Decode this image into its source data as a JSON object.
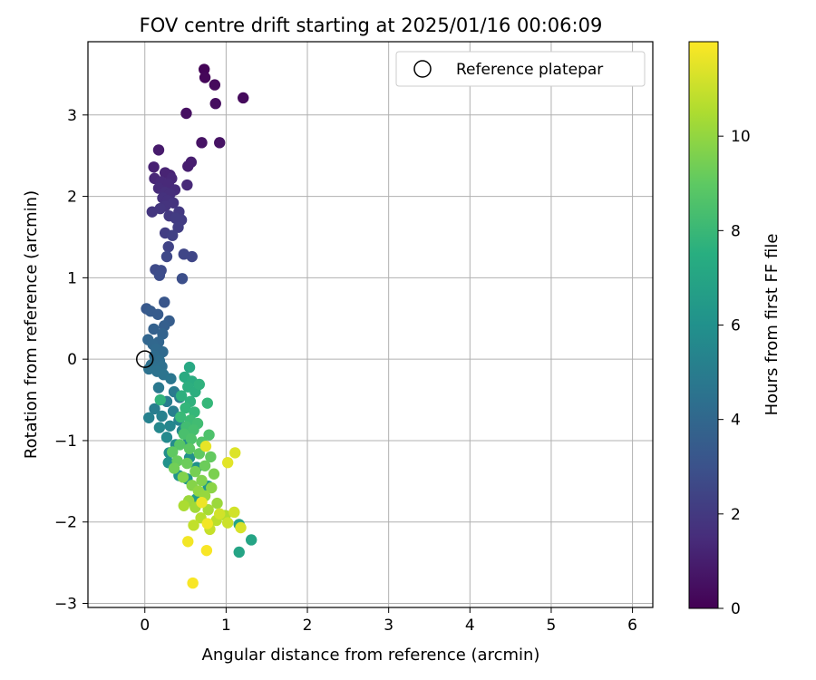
{
  "chart_data": {
    "type": "scatter",
    "title": "FOV centre drift starting at 2025/01/16 00:06:09",
    "xlabel": "Angular distance from reference (arcmin)",
    "ylabel": "Rotation from reference (arcmin)",
    "xlim": [
      -0.7,
      6.25
    ],
    "ylim": [
      -3.05,
      3.9
    ],
    "x_ticks": [
      0,
      1,
      2,
      3,
      4,
      5,
      6
    ],
    "y_ticks": [
      -3,
      -2,
      -1,
      0,
      1,
      2,
      3
    ],
    "grid": true,
    "legend": {
      "placement": "top-right",
      "label": "Reference platepar"
    },
    "reference_point": {
      "x": 0,
      "y": 0
    },
    "colorbar": {
      "label": "Hours from first FF file",
      "colormap": "viridis",
      "range": [
        0,
        12
      ],
      "ticks": [
        0,
        2,
        4,
        6,
        8,
        10
      ],
      "colors": [
        "#440154",
        "#3b528b",
        "#21918c",
        "#5ec962",
        "#fde725"
      ]
    },
    "points": [
      {
        "x": 0.73,
        "y": 3.56,
        "t": 0.1
      },
      {
        "x": 0.74,
        "y": 3.46,
        "t": 0.2
      },
      {
        "x": 0.86,
        "y": 3.37,
        "t": 0.3
      },
      {
        "x": 1.21,
        "y": 3.21,
        "t": 0.3
      },
      {
        "x": 0.87,
        "y": 3.14,
        "t": 0.4
      },
      {
        "x": 0.51,
        "y": 3.02,
        "t": 0.5
      },
      {
        "x": 0.7,
        "y": 2.66,
        "t": 0.6
      },
      {
        "x": 0.92,
        "y": 2.66,
        "t": 0.6
      },
      {
        "x": 0.17,
        "y": 2.57,
        "t": 0.9
      },
      {
        "x": 0.57,
        "y": 2.42,
        "t": 1.0
      },
      {
        "x": 0.53,
        "y": 2.37,
        "t": 1.0
      },
      {
        "x": 0.11,
        "y": 2.36,
        "t": 1.1
      },
      {
        "x": 0.25,
        "y": 2.29,
        "t": 1.2
      },
      {
        "x": 0.31,
        "y": 2.26,
        "t": 1.2
      },
      {
        "x": 0.12,
        "y": 2.22,
        "t": 1.3
      },
      {
        "x": 0.33,
        "y": 2.22,
        "t": 1.3
      },
      {
        "x": 0.2,
        "y": 2.18,
        "t": 1.4
      },
      {
        "x": 0.29,
        "y": 2.15,
        "t": 1.4
      },
      {
        "x": 0.52,
        "y": 2.14,
        "t": 1.4
      },
      {
        "x": 0.17,
        "y": 2.1,
        "t": 1.5
      },
      {
        "x": 0.37,
        "y": 2.08,
        "t": 1.5
      },
      {
        "x": 0.25,
        "y": 2.05,
        "t": 1.6
      },
      {
        "x": 0.31,
        "y": 2.03,
        "t": 1.6
      },
      {
        "x": 0.22,
        "y": 1.98,
        "t": 1.7
      },
      {
        "x": 0.28,
        "y": 1.95,
        "t": 1.7
      },
      {
        "x": 0.35,
        "y": 1.92,
        "t": 1.8
      },
      {
        "x": 0.25,
        "y": 1.88,
        "t": 1.8
      },
      {
        "x": 0.19,
        "y": 1.85,
        "t": 1.9
      },
      {
        "x": 0.09,
        "y": 1.81,
        "t": 1.9
      },
      {
        "x": 0.42,
        "y": 1.81,
        "t": 2.0
      },
      {
        "x": 0.3,
        "y": 1.76,
        "t": 2.0
      },
      {
        "x": 0.38,
        "y": 1.73,
        "t": 2.1
      },
      {
        "x": 0.45,
        "y": 1.71,
        "t": 2.1
      },
      {
        "x": 0.41,
        "y": 1.62,
        "t": 2.2
      },
      {
        "x": 0.25,
        "y": 1.55,
        "t": 2.2
      },
      {
        "x": 0.34,
        "y": 1.52,
        "t": 2.3
      },
      {
        "x": 0.29,
        "y": 1.38,
        "t": 2.4
      },
      {
        "x": 0.48,
        "y": 1.29,
        "t": 2.5
      },
      {
        "x": 0.58,
        "y": 1.26,
        "t": 2.5
      },
      {
        "x": 0.27,
        "y": 1.26,
        "t": 2.6
      },
      {
        "x": 0.13,
        "y": 1.1,
        "t": 2.7
      },
      {
        "x": 0.2,
        "y": 1.09,
        "t": 2.7
      },
      {
        "x": 0.18,
        "y": 1.03,
        "t": 2.8
      },
      {
        "x": 0.46,
        "y": 0.99,
        "t": 2.9
      },
      {
        "x": 0.24,
        "y": 0.7,
        "t": 3.2
      },
      {
        "x": 0.02,
        "y": 0.62,
        "t": 3.3
      },
      {
        "x": 0.07,
        "y": 0.59,
        "t": 3.4
      },
      {
        "x": 0.16,
        "y": 0.55,
        "t": 3.4
      },
      {
        "x": 0.3,
        "y": 0.47,
        "t": 3.5
      },
      {
        "x": 0.24,
        "y": 0.41,
        "t": 3.6
      },
      {
        "x": 0.11,
        "y": 0.37,
        "t": 3.7
      },
      {
        "x": 0.22,
        "y": 0.31,
        "t": 3.8
      },
      {
        "x": 0.04,
        "y": 0.24,
        "t": 3.9
      },
      {
        "x": 0.17,
        "y": 0.21,
        "t": 3.9
      },
      {
        "x": 0.1,
        "y": 0.18,
        "t": 4.0
      },
      {
        "x": 0.14,
        "y": 0.12,
        "t": 4.1
      },
      {
        "x": 0.22,
        "y": 0.09,
        "t": 4.1
      },
      {
        "x": 0.12,
        "y": 0.04,
        "t": 4.2
      },
      {
        "x": 0.18,
        "y": -0.02,
        "t": 4.3
      },
      {
        "x": 0.08,
        "y": -0.07,
        "t": 4.4
      },
      {
        "x": 0.21,
        "y": -0.09,
        "t": 4.4
      },
      {
        "x": 0.05,
        "y": -0.12,
        "t": 4.5
      },
      {
        "x": 0.15,
        "y": -0.15,
        "t": 4.5
      },
      {
        "x": 0.23,
        "y": -0.19,
        "t": 4.6
      },
      {
        "x": 0.32,
        "y": -0.24,
        "t": 4.7
      },
      {
        "x": 0.17,
        "y": -0.35,
        "t": 4.8
      },
      {
        "x": 0.36,
        "y": -0.4,
        "t": 4.9
      },
      {
        "x": 0.43,
        "y": -0.47,
        "t": 5.0
      },
      {
        "x": 0.27,
        "y": -0.52,
        "t": 5.0
      },
      {
        "x": 0.12,
        "y": -0.61,
        "t": 5.1
      },
      {
        "x": 0.35,
        "y": -0.64,
        "t": 5.2
      },
      {
        "x": 0.21,
        "y": -0.7,
        "t": 5.3
      },
      {
        "x": 0.05,
        "y": -0.72,
        "t": 5.3
      },
      {
        "x": 0.42,
        "y": -0.75,
        "t": 5.4
      },
      {
        "x": 0.31,
        "y": -0.82,
        "t": 5.5
      },
      {
        "x": 0.18,
        "y": -0.84,
        "t": 5.6
      },
      {
        "x": 0.46,
        "y": -0.88,
        "t": 5.6
      },
      {
        "x": 0.27,
        "y": -0.96,
        "t": 5.7
      },
      {
        "x": 0.54,
        "y": -1.0,
        "t": 5.8
      },
      {
        "x": 0.38,
        "y": -1.05,
        "t": 5.8
      },
      {
        "x": 0.3,
        "y": -1.15,
        "t": 5.9
      },
      {
        "x": 0.55,
        "y": -1.21,
        "t": 6.0
      },
      {
        "x": 0.29,
        "y": -1.27,
        "t": 6.1
      },
      {
        "x": 0.64,
        "y": -1.33,
        "t": 6.1
      },
      {
        "x": 0.42,
        "y": -1.43,
        "t": 6.2
      },
      {
        "x": 0.52,
        "y": -1.47,
        "t": 6.3
      },
      {
        "x": 0.78,
        "y": -1.56,
        "t": 6.4
      },
      {
        "x": 0.63,
        "y": -1.72,
        "t": 6.5
      },
      {
        "x": 1.16,
        "y": -2.03,
        "t": 6.9
      },
      {
        "x": 1.31,
        "y": -2.22,
        "t": 7.0
      },
      {
        "x": 1.16,
        "y": -2.37,
        "t": 7.0
      },
      {
        "x": 0.55,
        "y": -0.1,
        "t": 7.2
      },
      {
        "x": 0.49,
        "y": -0.22,
        "t": 7.3
      },
      {
        "x": 0.58,
        "y": -0.27,
        "t": 7.4
      },
      {
        "x": 0.53,
        "y": -0.34,
        "t": 7.5
      },
      {
        "x": 0.62,
        "y": -0.4,
        "t": 7.5
      },
      {
        "x": 0.45,
        "y": -0.45,
        "t": 7.6
      },
      {
        "x": 0.56,
        "y": -0.52,
        "t": 7.7
      },
      {
        "x": 0.67,
        "y": -0.31,
        "t": 7.7
      },
      {
        "x": 0.19,
        "y": -0.5,
        "t": 7.8
      },
      {
        "x": 0.5,
        "y": -0.6,
        "t": 7.9
      },
      {
        "x": 0.61,
        "y": -0.65,
        "t": 8.0
      },
      {
        "x": 0.77,
        "y": -0.54,
        "t": 8.0
      },
      {
        "x": 0.44,
        "y": -0.71,
        "t": 8.1
      },
      {
        "x": 0.56,
        "y": -0.75,
        "t": 8.2
      },
      {
        "x": 0.65,
        "y": -0.79,
        "t": 8.3
      },
      {
        "x": 0.51,
        "y": -0.83,
        "t": 8.3
      },
      {
        "x": 0.6,
        "y": -0.87,
        "t": 8.4
      },
      {
        "x": 0.48,
        "y": -0.92,
        "t": 8.5
      },
      {
        "x": 0.79,
        "y": -0.93,
        "t": 8.6
      },
      {
        "x": 0.57,
        "y": -0.98,
        "t": 8.6
      },
      {
        "x": 0.7,
        "y": -1.02,
        "t": 8.7
      },
      {
        "x": 0.43,
        "y": -1.05,
        "t": 8.8
      },
      {
        "x": 0.55,
        "y": -1.1,
        "t": 8.9
      },
      {
        "x": 0.34,
        "y": -1.14,
        "t": 9.0
      },
      {
        "x": 0.67,
        "y": -1.16,
        "t": 9.0
      },
      {
        "x": 0.81,
        "y": -1.2,
        "t": 9.1
      },
      {
        "x": 0.4,
        "y": -1.25,
        "t": 9.2
      },
      {
        "x": 0.52,
        "y": -1.28,
        "t": 9.3
      },
      {
        "x": 0.74,
        "y": -1.31,
        "t": 9.3
      },
      {
        "x": 0.36,
        "y": -1.34,
        "t": 9.4
      },
      {
        "x": 0.62,
        "y": -1.38,
        "t": 9.5
      },
      {
        "x": 0.85,
        "y": -1.41,
        "t": 9.6
      },
      {
        "x": 0.47,
        "y": -1.45,
        "t": 9.7
      },
      {
        "x": 0.7,
        "y": -1.49,
        "t": 9.7
      },
      {
        "x": 0.58,
        "y": -1.55,
        "t": 9.8
      },
      {
        "x": 0.82,
        "y": -1.58,
        "t": 9.9
      },
      {
        "x": 0.66,
        "y": -1.62,
        "t": 10.0
      },
      {
        "x": 0.74,
        "y": -1.68,
        "t": 10.1
      },
      {
        "x": 0.54,
        "y": -1.74,
        "t": 10.2
      },
      {
        "x": 0.89,
        "y": -1.77,
        "t": 10.2
      },
      {
        "x": 0.62,
        "y": -1.82,
        "t": 10.3
      },
      {
        "x": 0.78,
        "y": -1.85,
        "t": 10.4
      },
      {
        "x": 0.48,
        "y": -1.8,
        "t": 10.5
      },
      {
        "x": 0.99,
        "y": -1.92,
        "t": 10.6
      },
      {
        "x": 0.69,
        "y": -1.95,
        "t": 10.7
      },
      {
        "x": 0.88,
        "y": -1.98,
        "t": 10.8
      },
      {
        "x": 0.6,
        "y": -2.04,
        "t": 10.9
      },
      {
        "x": 0.8,
        "y": -2.09,
        "t": 11.0
      },
      {
        "x": 1.02,
        "y": -2.01,
        "t": 11.1
      },
      {
        "x": 0.92,
        "y": -1.9,
        "t": 11.2
      },
      {
        "x": 1.1,
        "y": -1.88,
        "t": 11.2
      },
      {
        "x": 1.18,
        "y": -2.07,
        "t": 11.3
      },
      {
        "x": 1.11,
        "y": -1.15,
        "t": 11.4
      },
      {
        "x": 1.02,
        "y": -1.27,
        "t": 11.5
      },
      {
        "x": 0.75,
        "y": -1.07,
        "t": 11.6
      },
      {
        "x": 0.7,
        "y": -1.76,
        "t": 11.7
      },
      {
        "x": 0.77,
        "y": -2.02,
        "t": 11.8
      },
      {
        "x": 0.53,
        "y": -2.24,
        "t": 11.8
      },
      {
        "x": 0.76,
        "y": -2.35,
        "t": 11.9
      },
      {
        "x": 0.59,
        "y": -2.75,
        "t": 11.9
      }
    ]
  }
}
